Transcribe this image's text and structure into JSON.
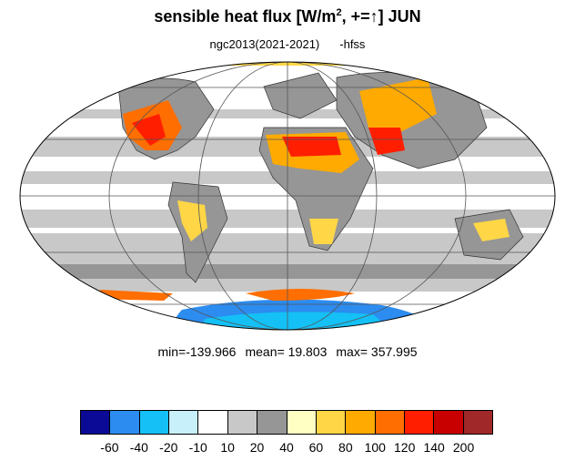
{
  "title": {
    "main": "sensible heat flux [W/m",
    "sup": "2",
    "after": ", +=",
    "arrow": "↑",
    "close": "]  JUN"
  },
  "subtitle": {
    "run": "ngc2013(2021-2021)",
    "var": "-hfss"
  },
  "stats": {
    "min": "min=-139.966",
    "mean": "mean=  19.803",
    "max": "max= 357.995"
  },
  "colorbar": {
    "colors": [
      "#0a0a96",
      "#2c8cf0",
      "#14c0f5",
      "#c8f0fa",
      "#ffffff",
      "#c8c8c8",
      "#969696",
      "#ffffc4",
      "#ffd646",
      "#ffaa00",
      "#ff6e00",
      "#ff1e00",
      "#c80000",
      "#a02828"
    ],
    "labels": [
      "-60",
      "-40",
      "-20",
      "-10",
      "10",
      "20",
      "40",
      "60",
      "80",
      "100",
      "120",
      "140",
      "200"
    ]
  },
  "map": {
    "projection": "mollweide",
    "ocean_color": "#c8c8c8",
    "land_color": "#969696",
    "coast_color": "#333333",
    "grid_color": "#555555"
  }
}
